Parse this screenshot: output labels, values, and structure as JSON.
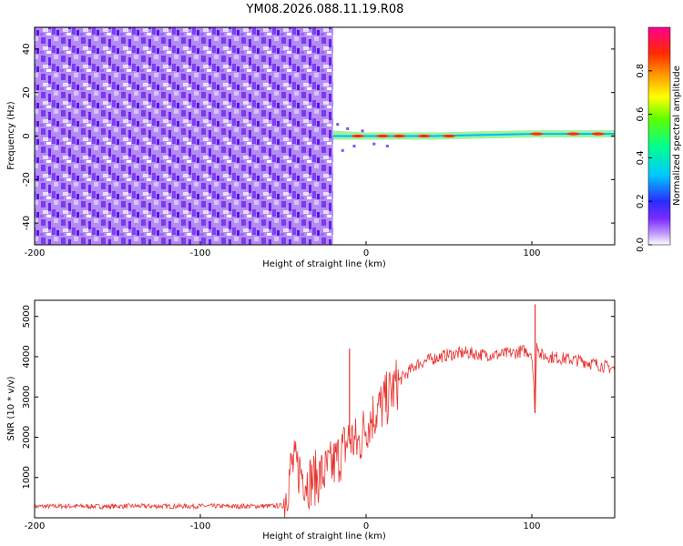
{
  "chart_data": [
    {
      "type": "heatmap",
      "title": "YM08.2026.088.11.19.R08",
      "xlabel": "Height of straight line (km)",
      "ylabel": "Frequency (Hz)",
      "xlim": [
        -200,
        150
      ],
      "ylim": [
        -50,
        50
      ],
      "x_ticks": [
        -200,
        -100,
        0,
        100
      ],
      "y_ticks": [
        -40,
        -20,
        0,
        20,
        40
      ],
      "x_tick_labels": [
        "-200",
        "-100",
        "0",
        "100"
      ],
      "y_tick_labels": [
        "-40",
        "-20",
        "0",
        "20",
        "40"
      ],
      "noise_region_x": [
        -200,
        -20
      ],
      "signal_line": [
        {
          "x": -20,
          "f": 0
        },
        {
          "x": 0,
          "f": 0
        },
        {
          "x": 40,
          "f": 0
        },
        {
          "x": 100,
          "f": 1
        },
        {
          "x": 150,
          "f": 1
        }
      ],
      "colorbar": {
        "label": "Normalized spectral amplitude",
        "ticks": [
          0.0,
          0.2,
          0.4,
          0.6,
          0.8
        ],
        "tick_labels": [
          "0.0",
          "0.2",
          "0.4",
          "0.6",
          "0.8"
        ],
        "range": [
          0,
          1
        ]
      }
    },
    {
      "type": "line",
      "xlabel": "Height of straight line (km)",
      "ylabel": "SNR (10 * v/v)",
      "xlim": [
        -200,
        150
      ],
      "ylim": [
        0,
        5400
      ],
      "x_ticks": [
        -200,
        -100,
        0,
        100
      ],
      "y_ticks": [
        1000,
        2000,
        3000,
        4000,
        5000
      ],
      "x_tick_labels": [
        "-200",
        "-100",
        "0",
        "100"
      ],
      "y_tick_labels": [
        "1000",
        "2000",
        "3000",
        "4000",
        "5000"
      ],
      "series": [
        {
          "name": "SNR",
          "color": "#e8332e",
          "x": [
            -200,
            -180,
            -160,
            -140,
            -120,
            -100,
            -80,
            -60,
            -50,
            -45,
            -40,
            -35,
            -30,
            -25,
            -20,
            -15,
            -10,
            -5,
            0,
            5,
            10,
            15,
            20,
            25,
            30,
            40,
            50,
            60,
            70,
            80,
            90,
            95,
            100,
            102,
            103,
            105,
            110,
            120,
            130,
            140,
            150
          ],
          "y": [
            280,
            290,
            280,
            290,
            285,
            290,
            285,
            290,
            300,
            1300,
            1200,
            900,
            1000,
            1100,
            1300,
            1600,
            2000,
            1800,
            2300,
            2600,
            2800,
            3100,
            3400,
            3600,
            3800,
            3950,
            4050,
            4100,
            4050,
            4050,
            4100,
            4150,
            4100,
            2600,
            4400,
            4050,
            4000,
            3950,
            3900,
            3800,
            3700
          ]
        }
      ],
      "spikes": [
        {
          "x": 102,
          "y": 5300
        },
        {
          "x": -10,
          "y": 4200
        }
      ]
    }
  ]
}
